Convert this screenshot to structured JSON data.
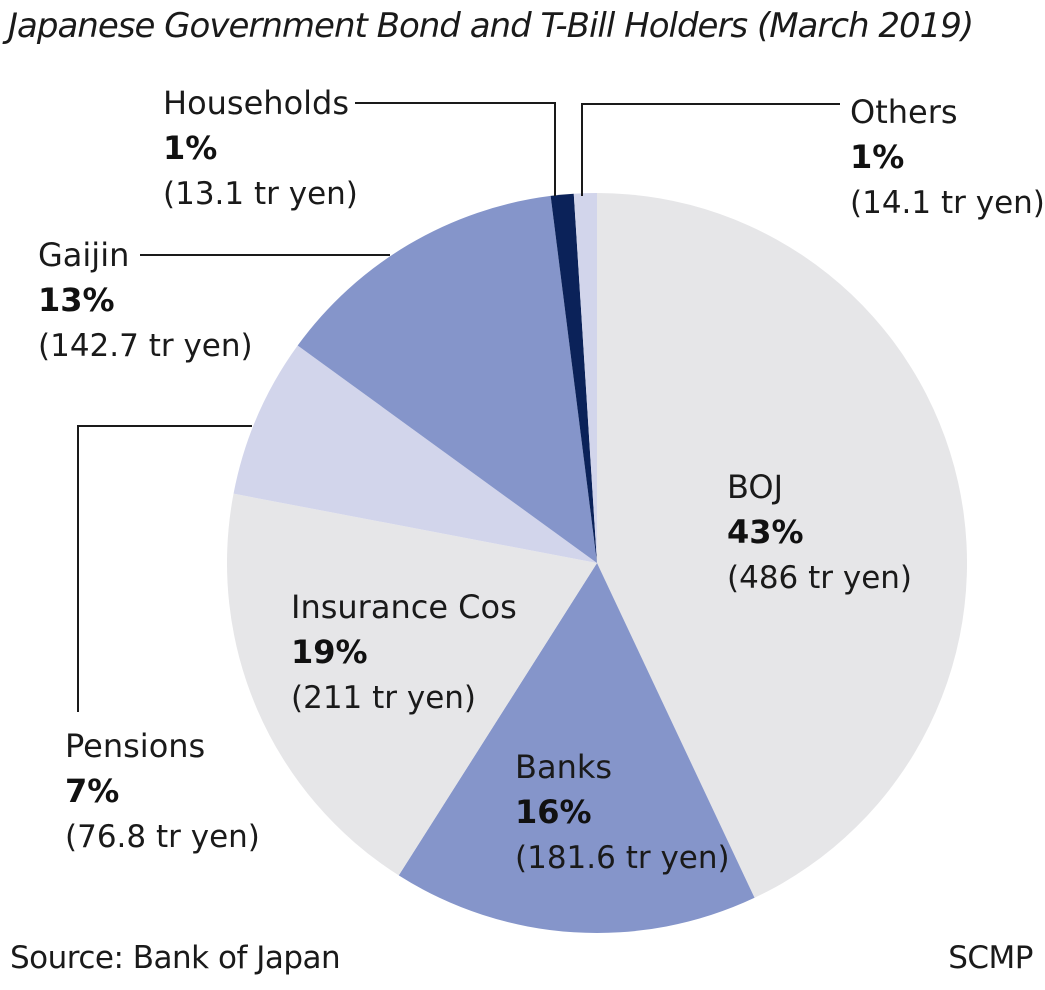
{
  "title": "Japanese Government Bond and T-Bill Holders (March 2019)",
  "source": "Source: Bank of Japan",
  "credit": "SCMP",
  "chart_data": {
    "type": "pie",
    "title": "Japanese Government Bond and T-Bill Holders (March 2019)",
    "slices": [
      {
        "label": "BOJ",
        "percent": "43%",
        "amount": "(486 tr yen)",
        "value": 43,
        "color": "#e6e6e8"
      },
      {
        "label": "Banks",
        "percent": "16%",
        "amount": "(181.6 tr yen)",
        "value": 16,
        "color": "#8595ca"
      },
      {
        "label": "Insurance Cos",
        "percent": "19%",
        "amount": "(211 tr yen)",
        "value": 19,
        "color": "#e6e6e8"
      },
      {
        "label": "Pensions",
        "percent": "7%",
        "amount": "(76.8 tr yen)",
        "value": 7,
        "color": "#d2d5eb"
      },
      {
        "label": "Gaijin",
        "percent": "13%",
        "amount": "(142.7 tr yen)",
        "value": 13,
        "color": "#8595ca"
      },
      {
        "label": "Households",
        "percent": "1%",
        "amount": "(13.1 tr yen)",
        "value": 1,
        "color": "#0b2259"
      },
      {
        "label": "Others",
        "percent": "1%",
        "amount": "(14.1 tr yen)",
        "value": 1,
        "color": "#d2d5eb"
      }
    ]
  }
}
